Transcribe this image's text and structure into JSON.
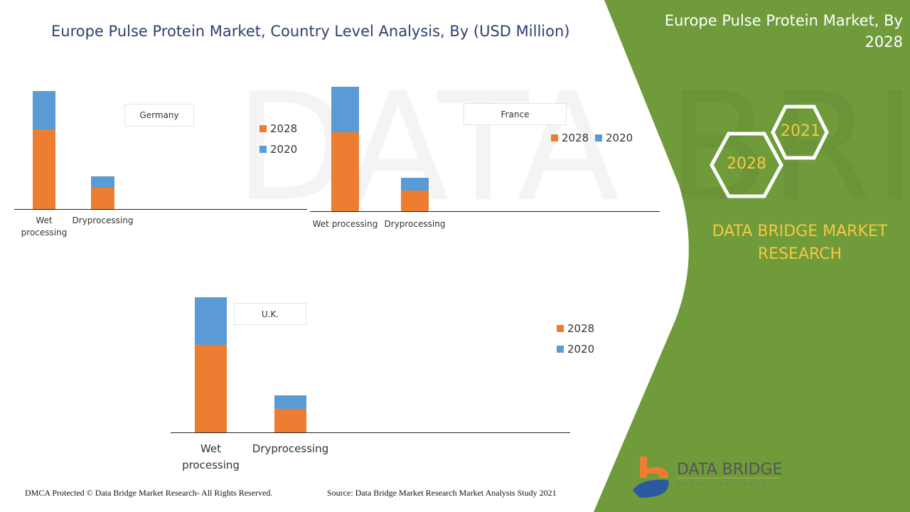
{
  "title": "Europe Pulse Protein Market, Country Level Analysis, By (USD Million)",
  "side_title": "Europe Pulse Protein Market, By 2028",
  "hexagons": [
    "2021",
    "2028"
  ],
  "brand": "DATA BRIDGE MARKET RESEARCH",
  "logo": {
    "name": "DATA BRIDGE",
    "sub": "MARKET RESEARCH"
  },
  "footer": {
    "left": "DMCA Protected © Data Bridge Market Research- All Rights Reserved.",
    "right": "Source: Data Bridge Market Research Market Analysis Study 2021"
  },
  "colors": {
    "s2028": "#ed7d31",
    "s2020": "#5b9bd5",
    "green": "#6f9b3a",
    "gold": "#f5c842"
  },
  "chart_data": [
    {
      "type": "bar",
      "stacked": true,
      "title": "Germany",
      "categories": [
        "Wet processing",
        "Dryprocessing"
      ],
      "series": [
        {
          "name": "2028",
          "values": [
            112,
            30
          ]
        },
        {
          "name": "2020",
          "values": [
            54,
            16
          ]
        }
      ],
      "ylim": [
        0,
        170
      ],
      "note": "relative units, no axis shown"
    },
    {
      "type": "bar",
      "stacked": true,
      "title": "France",
      "categories": [
        "Wet processing",
        "Dryprocessing"
      ],
      "series": [
        {
          "name": "2028",
          "values": [
            111,
            29
          ]
        },
        {
          "name": "2020",
          "values": [
            64,
            18
          ]
        }
      ],
      "ylim": [
        0,
        180
      ],
      "note": "relative units, no axis shown"
    },
    {
      "type": "bar",
      "stacked": true,
      "title": "U.K.",
      "categories": [
        "Wet processing",
        "Dryprocessing"
      ],
      "series": [
        {
          "name": "2028",
          "values": [
            123,
            33
          ]
        },
        {
          "name": "2020",
          "values": [
            67,
            19
          ]
        }
      ],
      "ylim": [
        0,
        195
      ],
      "note": "relative units, no axis shown"
    }
  ]
}
